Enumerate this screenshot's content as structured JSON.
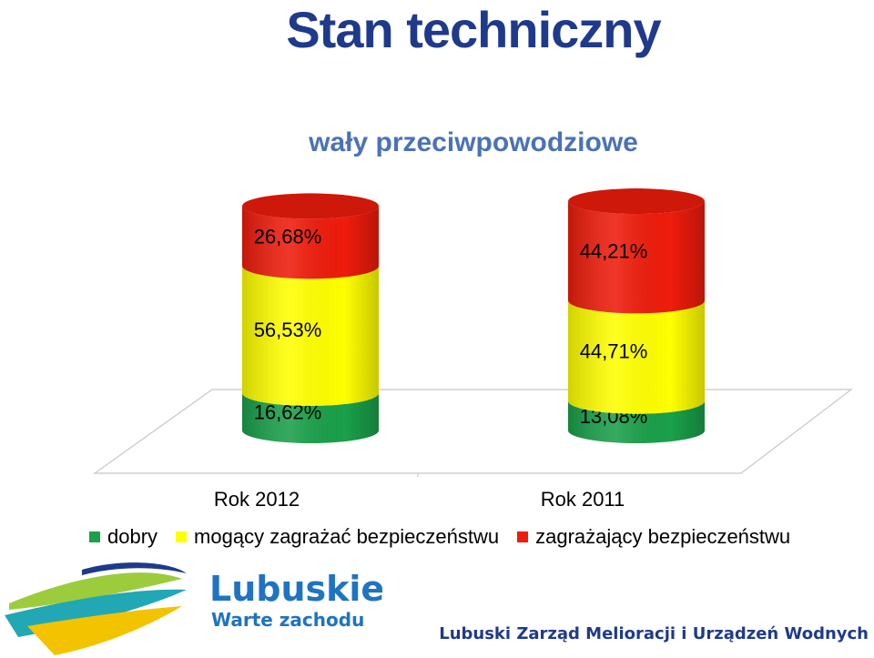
{
  "header": {
    "title": "Stan techniczny",
    "subtitle": "wały przeciwpowodziowe"
  },
  "chart_data": {
    "type": "bar",
    "stacked": true,
    "percent": true,
    "style": "3d-cylinder",
    "categories": [
      "Rok 2012",
      "Rok 2011"
    ],
    "series": [
      {
        "name": "dobry",
        "values": [
          16.62,
          13.08
        ],
        "labels": [
          "16,62%",
          "13,08%"
        ],
        "color": "#1aa04a"
      },
      {
        "name": "mogący zagrażać bezpieczeństwu",
        "values": [
          56.53,
          44.71
        ],
        "labels": [
          "56,53%",
          "44,71%"
        ],
        "color": "#ffff00"
      },
      {
        "name": "zagrażający bezpieczeństwu",
        "values": [
          26.68,
          44.21
        ],
        "labels": [
          "26,68%",
          "44,21%"
        ],
        "color": "#ee1c0c"
      }
    ],
    "ylim": [
      0,
      100
    ],
    "grid": false,
    "legend_position": "bottom"
  },
  "branding": {
    "logo_name": "Lubuskie",
    "logo_tagline": "Warte zachodu",
    "footer": "Lubuski Zarząd Melioracji i Urządzeń Wodnych"
  },
  "colors": {
    "title": "#1f3a8c",
    "subtitle": "#4a72b8"
  }
}
